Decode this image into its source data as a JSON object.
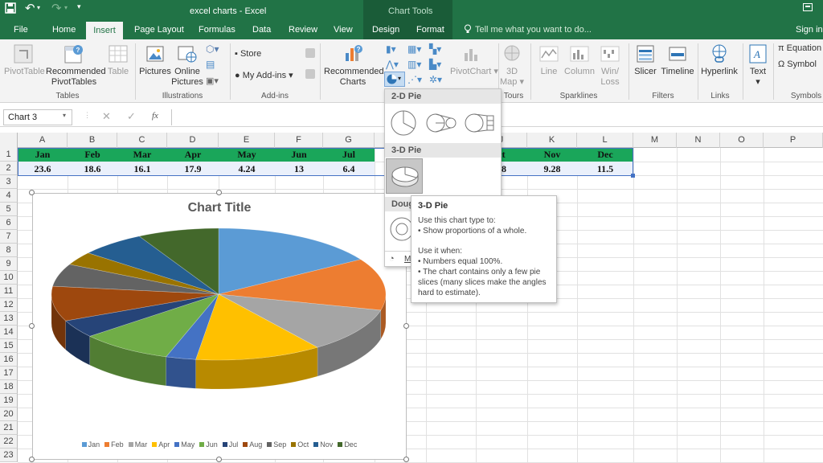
{
  "titlebar": {
    "title": "excel charts - Excel",
    "context_title": "Chart Tools"
  },
  "tabs": {
    "file": "File",
    "home": "Home",
    "insert": "Insert",
    "page_layout": "Page Layout",
    "formulas": "Formulas",
    "data": "Data",
    "review": "Review",
    "view": "View",
    "design": "Design",
    "format": "Format",
    "tell_me": "Tell me what you want to do...",
    "sign_in": "Sign in"
  },
  "ribbon": {
    "pivottable": "PivotTable",
    "rec_pivot_1": "Recommended",
    "rec_pivot_2": "PivotTables",
    "table": "Table",
    "pictures": "Pictures",
    "online_pictures_1": "Online",
    "online_pictures_2": "Pictures",
    "store": "Store",
    "my_addins": "My Add-ins",
    "rec_charts_1": "Recommended",
    "rec_charts_2": "Charts",
    "pivotchart": "PivotChart",
    "map_3d_1": "3D",
    "map_3d_2": "Map",
    "line": "Line",
    "column": "Column",
    "winloss_1": "Win/",
    "winloss_2": "Loss",
    "slicer": "Slicer",
    "timeline": "Timeline",
    "hyperlink": "Hyperlink",
    "text": "Text",
    "equation": "Equation",
    "symbol": "Symbol",
    "groups": {
      "tables": "Tables",
      "illustrations": "Illustrations",
      "addins": "Add-ins",
      "tours": "Tours",
      "sparklines": "Sparklines",
      "filters": "Filters",
      "links": "Links",
      "symbols": "Symbols"
    }
  },
  "formula_bar": {
    "name_box": "Chart 3",
    "fx": "fx",
    "value": ""
  },
  "columns": [
    "A",
    "B",
    "C",
    "D",
    "E",
    "F",
    "G",
    "H",
    "I",
    "J",
    "K",
    "L",
    "M",
    "N",
    "O",
    "P"
  ],
  "rows": [
    "1",
    "2",
    "3",
    "4",
    "5",
    "6",
    "7",
    "8",
    "9",
    "10",
    "11",
    "12",
    "13",
    "14",
    "15",
    "16",
    "17",
    "18",
    "19",
    "20",
    "21",
    "22",
    "23"
  ],
  "sheet": {
    "months": [
      "Jan",
      "Feb",
      "Mar",
      "Apr",
      "May",
      "Jun",
      "Jul",
      "Aug",
      "Sep",
      "Oct",
      "Nov",
      "Dec"
    ],
    "values_text": [
      "23.6",
      "18.6",
      "16.1",
      "17.9",
      "4.24",
      "13",
      "6.4",
      "",
      "",
      "88",
      "9.28",
      "11.5"
    ],
    "partial_oct": "ct"
  },
  "chart": {
    "title": "Chart Title",
    "legend": [
      "Jan",
      "Feb",
      "Mar",
      "Apr",
      "May",
      "Jun",
      "Jul",
      "Aug",
      "Sep",
      "Oct",
      "Nov",
      "Dec"
    ]
  },
  "chart_data": {
    "type": "pie",
    "title": "Chart Title",
    "categories": [
      "Jan",
      "Feb",
      "Mar",
      "Apr",
      "May",
      "Jun",
      "Jul",
      "Aug",
      "Sep",
      "Oct",
      "Nov",
      "Dec"
    ],
    "values": [
      23.6,
      18.6,
      16.1,
      17.9,
      4.24,
      13,
      6.4,
      12.5,
      8.1,
      4.8,
      9.28,
      11.5
    ],
    "colors": [
      "#5b9bd5",
      "#ed7d31",
      "#a5a5a5",
      "#ffc000",
      "#4472c4",
      "#70ad47",
      "#264478",
      "#9e480e",
      "#636363",
      "#997300",
      "#255e91",
      "#43682b"
    ],
    "legend_position": "bottom",
    "style": "3-D"
  },
  "dropdown": {
    "section_2d": "2-D Pie",
    "section_3d": "3-D Pie",
    "section_doughnut": "Doug",
    "more": "M"
  },
  "tooltip": {
    "title": "3-D Pie",
    "line1": "Use this chart type to:",
    "line2": "• Show proportions of a whole.",
    "line3": "Use it when:",
    "line4": "• Numbers equal 100%.",
    "line5": "• The chart contains only a few pie",
    "line6": "slices (many slices make the angles",
    "line7": "hard to estimate)."
  }
}
